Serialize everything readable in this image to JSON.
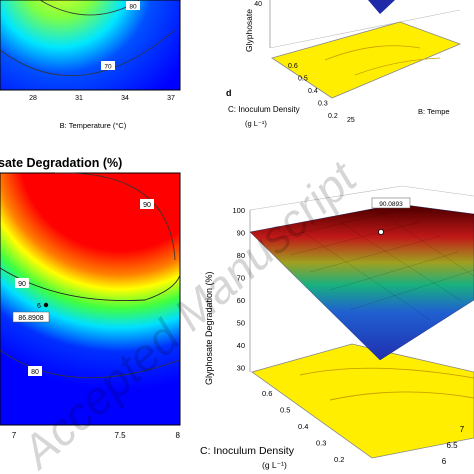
{
  "chart_data": [
    {
      "type": "heatmap",
      "panel": "top-left contour",
      "xlabel": "B: Temperature (°C)",
      "x_ticks": [
        "28",
        "31",
        "34",
        "37"
      ],
      "contour_labels": [
        "80",
        "70"
      ],
      "colormap": [
        "#0000ff",
        "#00c8ff",
        "#00ff60",
        "#ffff00",
        "#ff0000"
      ]
    },
    {
      "type": "surface",
      "panel": "top-right 3D surface",
      "zlabel": "Glyphosate",
      "z_ticks": [
        "40"
      ],
      "panel_letter": "d",
      "base_ticks": [
        "0.6",
        "0.5",
        "0.4",
        "0.3",
        "0.2"
      ],
      "temp_ticks": [
        "25"
      ],
      "density_label": "C: Inoculum Density",
      "density_unit": "(g L⁻¹)",
      "temp_label": "B: Tempe"
    },
    {
      "type": "heatmap",
      "panel": "bottom-left contour",
      "title": "sate Degradation (%)",
      "x_ticks": [
        "7",
        "7.5",
        "8"
      ],
      "contour_labels": [
        "90",
        "90",
        "80"
      ],
      "point_label": "86.8908",
      "point_marker": "6",
      "colormap": [
        "#0000ff",
        "#00c8ff",
        "#00ff60",
        "#ffff00",
        "#ff0000"
      ]
    },
    {
      "type": "surface",
      "panel": "bottom-right 3D surface",
      "zlabel": "Glyphosate Degradation (%)",
      "z_ticks": [
        "100",
        "90",
        "80",
        "70",
        "60",
        "50",
        "40",
        "30"
      ],
      "peak_label": "90.0893",
      "base_ticks": [
        "0.6",
        "0.5",
        "0.4",
        "0.3",
        "0.2"
      ],
      "ph_ticks": [
        "6",
        "6.5",
        "7"
      ],
      "density_label": "C: Inoculum Density",
      "density_unit": "(g L⁻¹)"
    }
  ],
  "watermark": "Accepted Manuscript",
  "colors": {
    "surface_high": "#8b0000",
    "surface_low": "#1e2aa8",
    "base": "#ffee00"
  }
}
